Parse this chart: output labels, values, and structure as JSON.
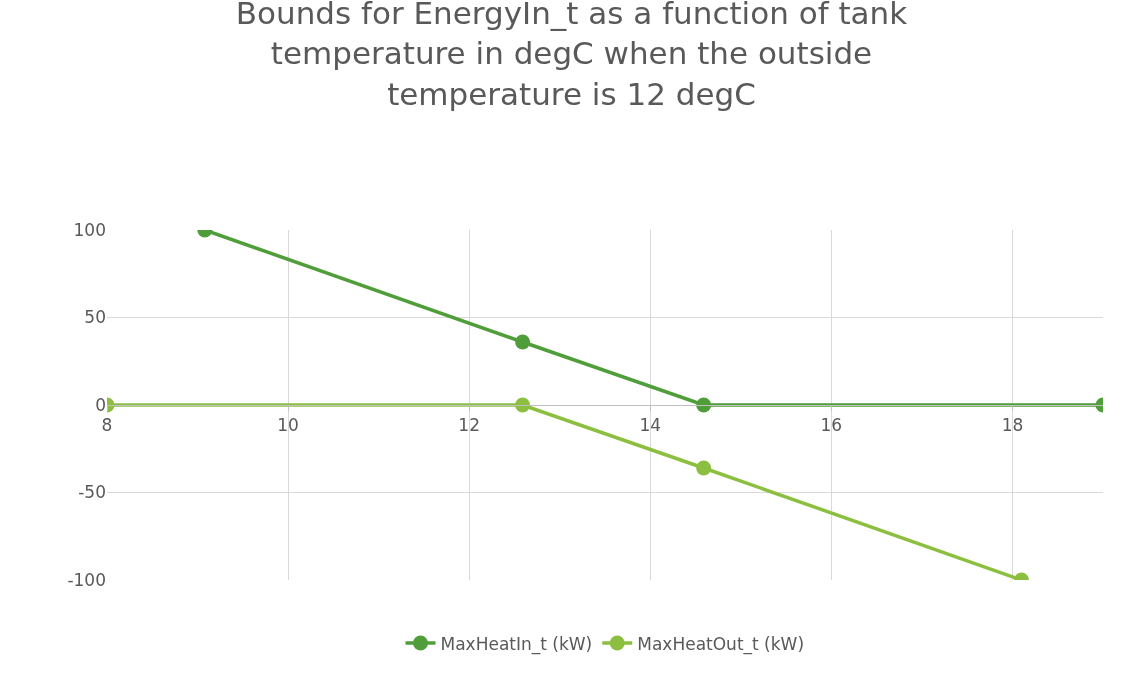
{
  "chart_data": {
    "type": "line",
    "title": "Bounds for EnergyIn_t as a function of tank\ntemperature in degC when the outside\ntemperature is 12 degC",
    "series": [
      {
        "name": "MaxHeatIn_t (kW)",
        "color": "#4f9e3a",
        "x": [
          9.08,
          12.59,
          14.59,
          19
        ],
        "values": [
          100,
          36,
          0,
          0
        ]
      },
      {
        "name": "MaxHeatOut_t (kW)",
        "color": "#8cbf3f",
        "x": [
          8,
          12.59,
          14.59,
          18.1
        ],
        "values": [
          0,
          0,
          -36,
          -100
        ]
      }
    ],
    "xlim": [
      8,
      19
    ],
    "xticks": [
      8,
      10,
      12,
      14,
      16,
      18
    ],
    "ylim": [
      -100,
      100
    ],
    "yticks": [
      -100,
      -50,
      0,
      50,
      100
    ],
    "grid": true,
    "legend": "bottom",
    "marker": "circle",
    "line_style": "solid"
  }
}
